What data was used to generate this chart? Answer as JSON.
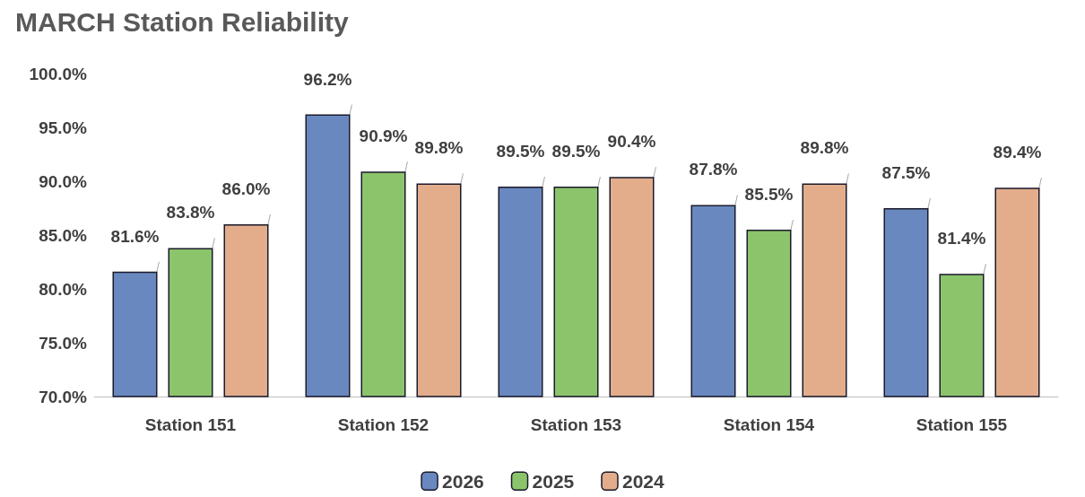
{
  "chart_data": {
    "type": "bar",
    "title": "MARCH Station Reliability",
    "categories": [
      "Station 151",
      "Station 152",
      "Station 153",
      "Station 154",
      "Station 155"
    ],
    "series": [
      {
        "name": "2026",
        "color": "#6a88c0",
        "values": [
          81.6,
          96.2,
          89.5,
          87.8,
          87.5
        ],
        "value_labels": [
          "81.6%",
          "96.2%",
          "89.5%",
          "87.8%",
          "87.5%"
        ]
      },
      {
        "name": "2025",
        "color": "#8cc46c",
        "values": [
          83.8,
          90.9,
          89.5,
          85.5,
          81.4
        ],
        "value_labels": [
          "83.8%",
          "90.9%",
          "89.5%",
          "85.5%",
          "81.4%"
        ]
      },
      {
        "name": "2024",
        "color": "#e3ad8c",
        "values": [
          86.0,
          89.8,
          90.4,
          89.8,
          89.4
        ],
        "value_labels": [
          "86.0%",
          "89.8%",
          "90.4%",
          "89.8%",
          "89.4%"
        ]
      }
    ],
    "ylim": [
      70,
      100
    ],
    "yticks": [
      {
        "value": 70,
        "label": "70.0%"
      },
      {
        "value": 75,
        "label": "75.0%"
      },
      {
        "value": 80,
        "label": "80.0%"
      },
      {
        "value": 85,
        "label": "85.0%"
      },
      {
        "value": 90,
        "label": "90.0%"
      },
      {
        "value": 95,
        "label": "95.0%"
      },
      {
        "value": 100,
        "label": "100.0%"
      }
    ],
    "grid": false,
    "legend": "bottom"
  }
}
